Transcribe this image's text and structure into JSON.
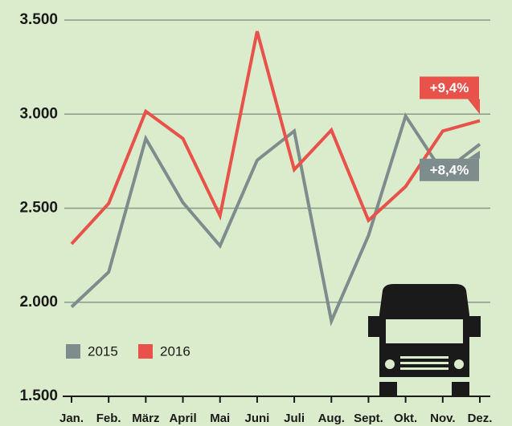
{
  "chart_data": {
    "type": "line",
    "categories": [
      "Jan.",
      "Feb.",
      "März",
      "April",
      "Mai",
      "Juni",
      "Juli",
      "Aug.",
      "Sept.",
      "Okt.",
      "Nov.",
      "Dez."
    ],
    "series": [
      {
        "name": "2015",
        "color": "#7f8c8d",
        "values": [
          1975,
          2160,
          2870,
          2530,
          2300,
          2755,
          2910,
          1900,
          2355,
          2990,
          2690,
          2840
        ]
      },
      {
        "name": "2016",
        "color": "#e8524a",
        "values": [
          2310,
          2525,
          3015,
          2870,
          2460,
          3440,
          2705,
          2915,
          2435,
          2615,
          2910,
          2965
        ]
      }
    ],
    "ylim": [
      1500,
      3500
    ],
    "yticks": [
      {
        "value": 1500,
        "label": "1.500"
      },
      {
        "value": 2000,
        "label": "2.000"
      },
      {
        "value": 2500,
        "label": "2.500"
      },
      {
        "value": 3000,
        "label": "3.000"
      },
      {
        "value": 3500,
        "label": "3.500"
      }
    ],
    "grid": true,
    "annotations": [
      "+8,4%",
      "+9,4%"
    ]
  }
}
